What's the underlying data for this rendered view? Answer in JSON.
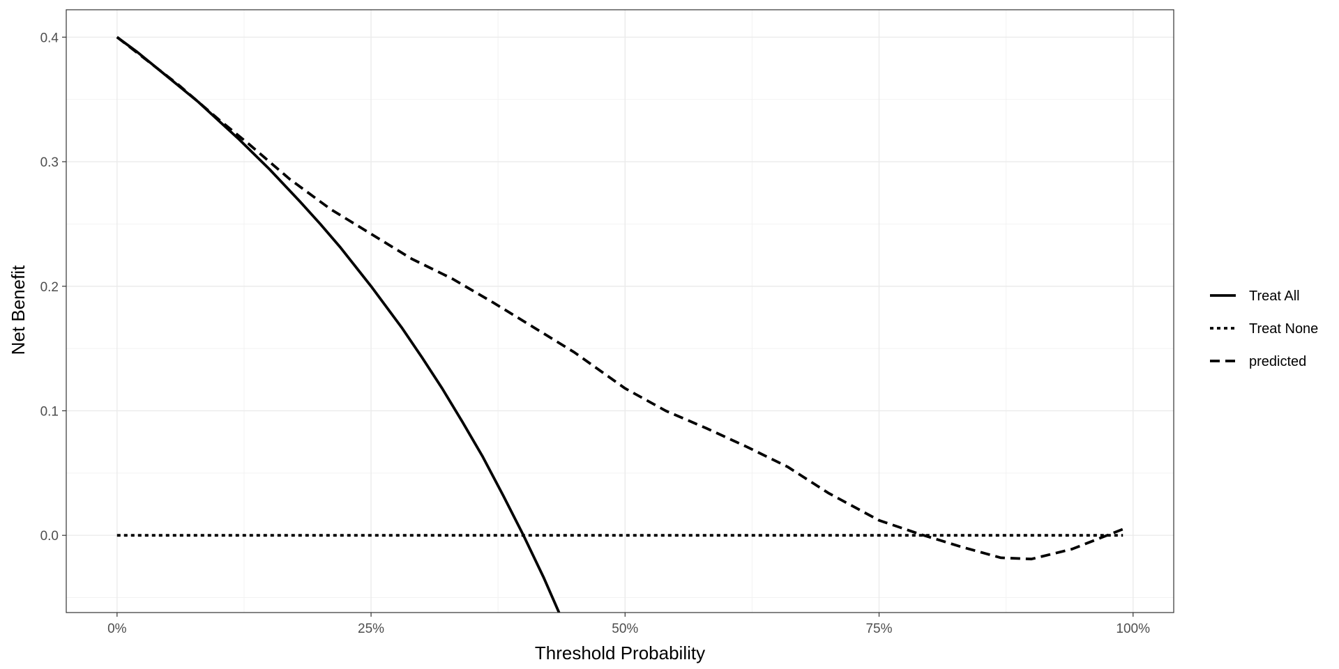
{
  "chart_data": {
    "type": "line",
    "xlabel": "Threshold Probability",
    "ylabel": "Net Benefit",
    "xlim": [
      -0.05,
      1.04
    ],
    "ylim": [
      -0.062,
      0.422
    ],
    "x_ticks": [
      {
        "value": 0.0,
        "label": "0%"
      },
      {
        "value": 0.25,
        "label": "25%"
      },
      {
        "value": 0.5,
        "label": "50%"
      },
      {
        "value": 0.75,
        "label": "75%"
      },
      {
        "value": 1.0,
        "label": "100%"
      }
    ],
    "y_ticks": [
      {
        "value": 0.0,
        "label": "0.0"
      },
      {
        "value": 0.1,
        "label": "0.1"
      },
      {
        "value": 0.2,
        "label": "0.2"
      },
      {
        "value": 0.3,
        "label": "0.3"
      },
      {
        "value": 0.4,
        "label": "0.4"
      }
    ],
    "grid": true,
    "legend_position": "right",
    "series": [
      {
        "name": "Treat All",
        "line_style": "solid",
        "color": "#000000",
        "x": [
          0.0,
          0.02,
          0.05,
          0.08,
          0.1,
          0.12,
          0.15,
          0.18,
          0.2,
          0.22,
          0.25,
          0.28,
          0.3,
          0.32,
          0.34,
          0.36,
          0.38,
          0.4,
          0.42,
          0.435
        ],
        "y": [
          0.4,
          0.388,
          0.368,
          0.348,
          0.333,
          0.318,
          0.294,
          0.268,
          0.25,
          0.231,
          0.2,
          0.167,
          0.143,
          0.118,
          0.091,
          0.063,
          0.032,
          0.0,
          -0.034,
          -0.062
        ]
      },
      {
        "name": "Treat None",
        "line_style": "dotted",
        "color": "#000000",
        "x": [
          0.0,
          0.99
        ],
        "y": [
          0.0,
          0.0
        ]
      },
      {
        "name": "predicted",
        "line_style": "dashed",
        "color": "#000000",
        "x": [
          0.0,
          0.03,
          0.06,
          0.1,
          0.13,
          0.17,
          0.21,
          0.25,
          0.29,
          0.33,
          0.37,
          0.41,
          0.45,
          0.5,
          0.54,
          0.58,
          0.62,
          0.66,
          0.7,
          0.75,
          0.79,
          0.83,
          0.87,
          0.9,
          0.94,
          0.99
        ],
        "y": [
          0.4,
          0.381,
          0.362,
          0.334,
          0.314,
          0.286,
          0.262,
          0.242,
          0.222,
          0.206,
          0.187,
          0.167,
          0.147,
          0.118,
          0.1,
          0.086,
          0.071,
          0.055,
          0.034,
          0.012,
          0.001,
          -0.009,
          -0.018,
          -0.019,
          -0.011,
          0.005
        ]
      }
    ]
  }
}
